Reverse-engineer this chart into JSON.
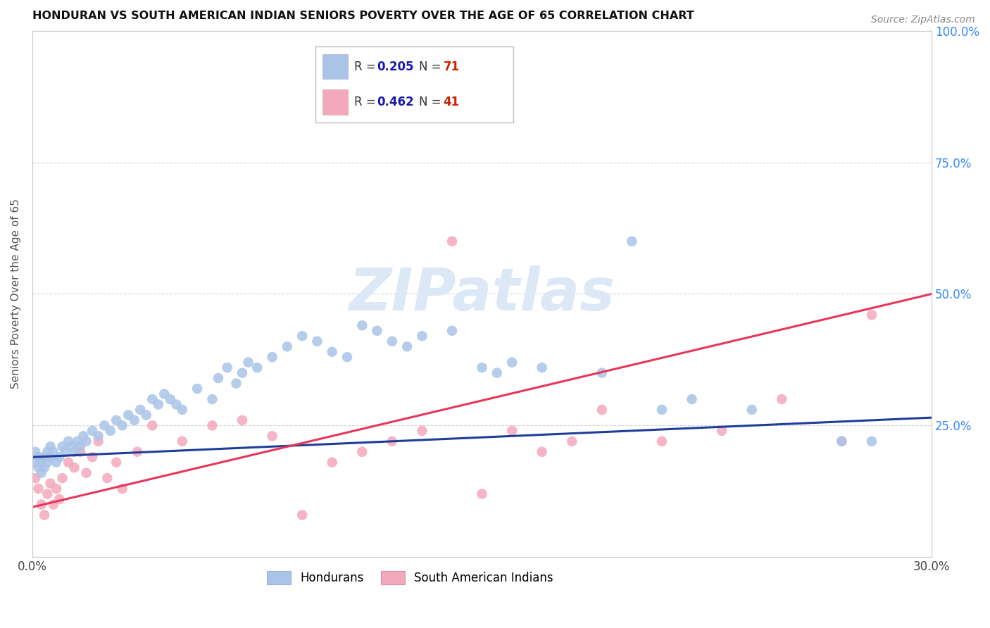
{
  "title": "HONDURAN VS SOUTH AMERICAN INDIAN SENIORS POVERTY OVER THE AGE OF 65 CORRELATION CHART",
  "source": "Source: ZipAtlas.com",
  "ylabel": "Seniors Poverty Over the Age of 65",
  "xlim": [
    0.0,
    0.3
  ],
  "ylim": [
    0.0,
    1.0
  ],
  "xticks": [
    0.0,
    0.05,
    0.1,
    0.15,
    0.2,
    0.25,
    0.3
  ],
  "xticklabels": [
    "0.0%",
    "",
    "",
    "",
    "",
    "",
    "30.0%"
  ],
  "yticks": [
    0.0,
    0.25,
    0.5,
    0.75,
    1.0
  ],
  "yticklabels_right": [
    "",
    "25.0%",
    "50.0%",
    "75.0%",
    "100.0%"
  ],
  "grid_color": "#d0d0d0",
  "background_color": "#ffffff",
  "honduran_color": "#aac4e8",
  "sa_indian_color": "#f4a8bc",
  "honduran_line_color": "#1f3d99",
  "sa_indian_line_color": "#e8365a",
  "honduran_R": 0.205,
  "honduran_N": 71,
  "sa_indian_R": 0.462,
  "sa_indian_N": 41,
  "legend_text_color_R": "#1a1aaa",
  "legend_text_color_N": "#cc2200",
  "watermark_color": "#dce8f5",
  "honduran_x": [
    0.001,
    0.001,
    0.002,
    0.002,
    0.003,
    0.003,
    0.004,
    0.004,
    0.005,
    0.005,
    0.006,
    0.006,
    0.007,
    0.008,
    0.009,
    0.01,
    0.011,
    0.012,
    0.013,
    0.014,
    0.015,
    0.016,
    0.017,
    0.018,
    0.02,
    0.022,
    0.024,
    0.026,
    0.028,
    0.03,
    0.032,
    0.034,
    0.036,
    0.038,
    0.04,
    0.042,
    0.044,
    0.046,
    0.048,
    0.05,
    0.055,
    0.06,
    0.062,
    0.065,
    0.068,
    0.07,
    0.072,
    0.075,
    0.08,
    0.085,
    0.09,
    0.095,
    0.1,
    0.105,
    0.11,
    0.115,
    0.12,
    0.125,
    0.13,
    0.14,
    0.15,
    0.155,
    0.16,
    0.17,
    0.19,
    0.2,
    0.21,
    0.22,
    0.24,
    0.27,
    0.28
  ],
  "honduran_y": [
    0.18,
    0.2,
    0.17,
    0.19,
    0.16,
    0.18,
    0.19,
    0.17,
    0.18,
    0.2,
    0.19,
    0.21,
    0.2,
    0.18,
    0.19,
    0.21,
    0.2,
    0.22,
    0.21,
    0.2,
    0.22,
    0.21,
    0.23,
    0.22,
    0.24,
    0.23,
    0.25,
    0.24,
    0.26,
    0.25,
    0.27,
    0.26,
    0.28,
    0.27,
    0.3,
    0.29,
    0.31,
    0.3,
    0.29,
    0.28,
    0.32,
    0.3,
    0.34,
    0.36,
    0.33,
    0.35,
    0.37,
    0.36,
    0.38,
    0.4,
    0.42,
    0.41,
    0.39,
    0.38,
    0.44,
    0.43,
    0.41,
    0.4,
    0.42,
    0.43,
    0.36,
    0.35,
    0.37,
    0.36,
    0.35,
    0.6,
    0.28,
    0.3,
    0.28,
    0.22,
    0.22
  ],
  "sa_indian_x": [
    0.001,
    0.002,
    0.003,
    0.004,
    0.005,
    0.006,
    0.007,
    0.008,
    0.009,
    0.01,
    0.012,
    0.014,
    0.016,
    0.018,
    0.02,
    0.022,
    0.025,
    0.028,
    0.03,
    0.035,
    0.04,
    0.05,
    0.06,
    0.07,
    0.08,
    0.09,
    0.1,
    0.11,
    0.12,
    0.13,
    0.14,
    0.15,
    0.16,
    0.17,
    0.18,
    0.19,
    0.21,
    0.23,
    0.25,
    0.27,
    0.28
  ],
  "sa_indian_y": [
    0.15,
    0.13,
    0.1,
    0.08,
    0.12,
    0.14,
    0.1,
    0.13,
    0.11,
    0.15,
    0.18,
    0.17,
    0.2,
    0.16,
    0.19,
    0.22,
    0.15,
    0.18,
    0.13,
    0.2,
    0.25,
    0.22,
    0.25,
    0.26,
    0.23,
    0.08,
    0.18,
    0.2,
    0.22,
    0.24,
    0.6,
    0.12,
    0.24,
    0.2,
    0.22,
    0.28,
    0.22,
    0.24,
    0.3,
    0.22,
    0.46
  ]
}
